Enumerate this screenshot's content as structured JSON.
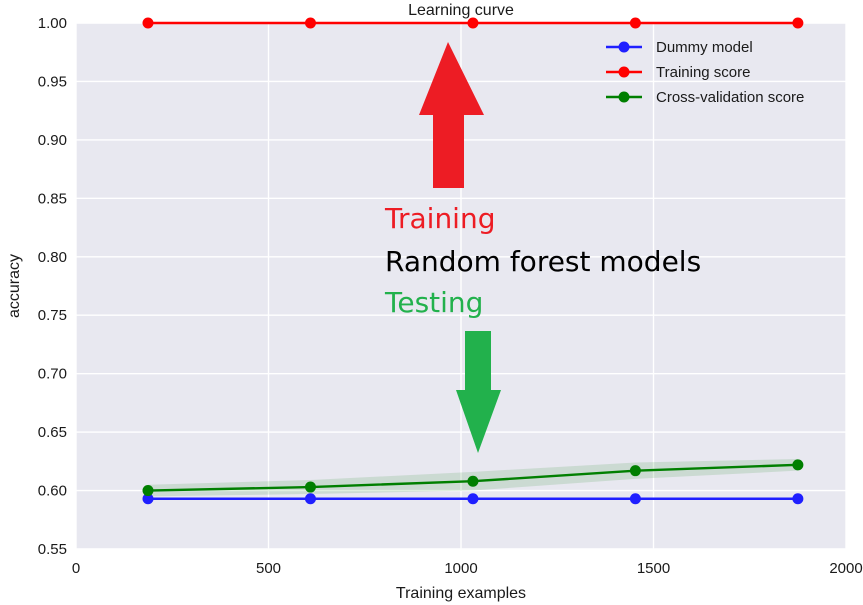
{
  "chart_data": {
    "type": "line",
    "title": "Learning curve",
    "xlabel": "Training examples",
    "ylabel": "accuracy",
    "xlim": [
      0,
      2000
    ],
    "ylim": [
      0.55,
      1.0
    ],
    "xticks": [
      "0",
      "500",
      "1000",
      "1500",
      "2000"
    ],
    "yticks": [
      "0.55",
      "0.60",
      "0.65",
      "0.70",
      "0.75",
      "0.80",
      "0.85",
      "0.90",
      "0.95",
      "1.00"
    ],
    "grid": true,
    "background_color": "#e8e8f0",
    "legend_position": "top-right",
    "x": [
      187,
      609,
      1031,
      1453,
      1875
    ],
    "series": [
      {
        "name": "Dummy model",
        "color": "#1f1fff",
        "values": [
          0.593,
          0.593,
          0.593,
          0.593,
          0.593
        ]
      },
      {
        "name": "Training score",
        "color": "#ff0000",
        "values": [
          1.0,
          1.0,
          1.0,
          1.0,
          1.0
        ]
      },
      {
        "name": "Cross-validation score",
        "color": "#007f00",
        "values": [
          0.6,
          0.603,
          0.608,
          0.617,
          0.622
        ],
        "band_lower": [
          0.595,
          0.597,
          0.6,
          0.61,
          0.617
        ],
        "band_upper": [
          0.605,
          0.609,
          0.616,
          0.624,
          0.627
        ]
      }
    ],
    "annotations": {
      "training_label": "Training",
      "models_label": "Random forest models",
      "testing_label": "Testing",
      "training_color": "#ed1c24",
      "models_color": "#000000",
      "testing_color": "#22b14c"
    }
  }
}
